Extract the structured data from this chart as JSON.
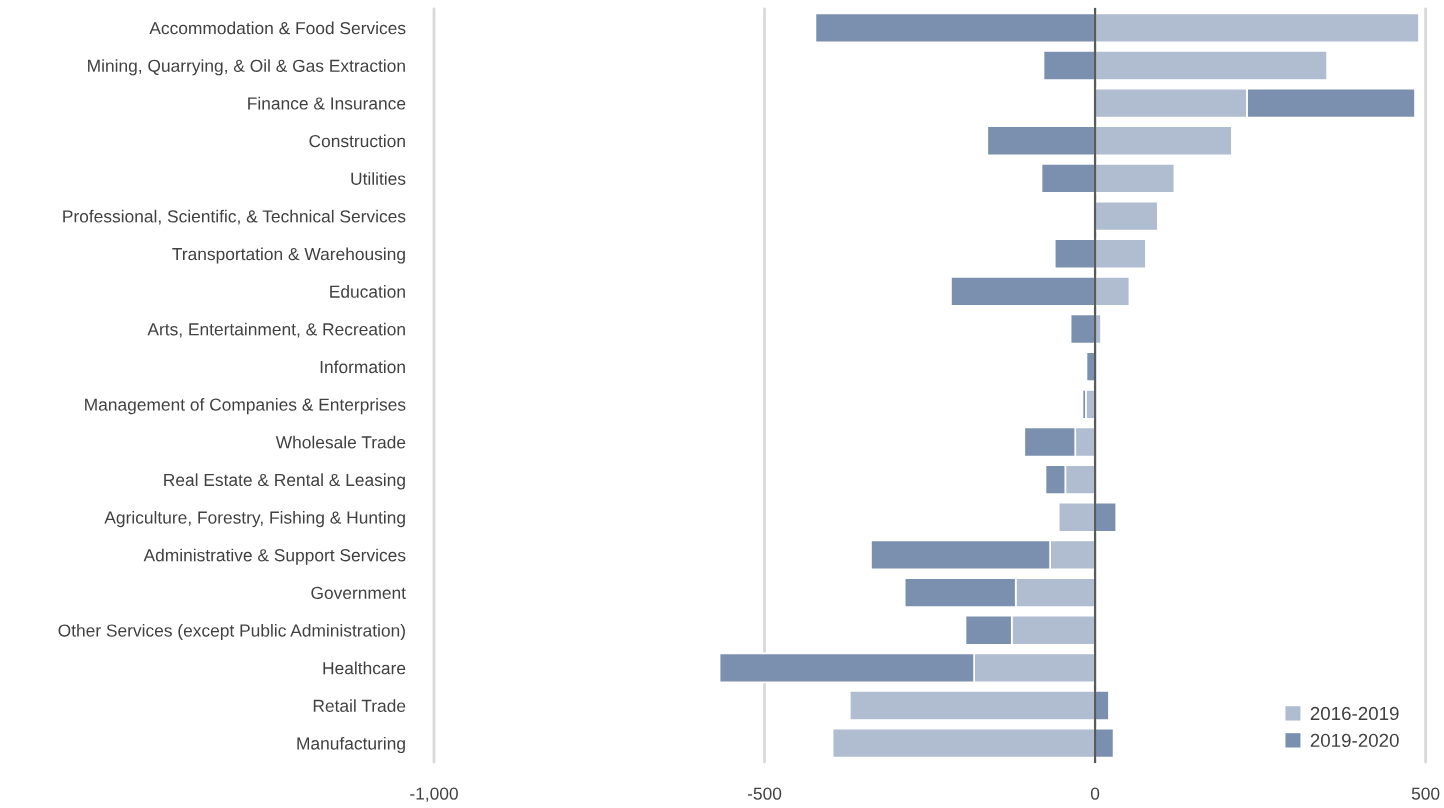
{
  "chart_data": {
    "type": "bar",
    "orientation": "horizontal",
    "stacked": true,
    "categories": [
      "Accommodation & Food Services",
      "Mining, Quarrying, & Oil & Gas Extraction",
      "Finance & Insurance",
      "Construction",
      "Utilities",
      "Professional, Scientific, & Technical Services",
      "Transportation & Warehousing",
      "Education",
      "Arts, Entertainment, & Recreation",
      "Information",
      "Management of Companies & Enterprises",
      "Wholesale Trade",
      "Real Estate & Rental & Leasing",
      "Agriculture, Forestry, Fishing & Hunting",
      "Administrative & Support Services",
      "Government",
      "Other Services (except Public Administration)",
      "Healthcare",
      "Retail Trade",
      "Manufacturing"
    ],
    "series": [
      {
        "name": "2016-2019",
        "color": "#b0bdd0",
        "values": [
          490,
          351,
          230,
          207,
          120,
          95,
          77,
          52,
          9,
          null,
          -14,
          -30,
          -45,
          -55,
          -68,
          -120,
          -126,
          -183,
          -371,
          -397
        ]
      },
      {
        "name": "2019-2020",
        "color": "#7b90ae",
        "values": [
          -423,
          -78,
          254,
          -163,
          -81,
          null,
          -61,
          -218,
          -37,
          -13,
          -5,
          -77,
          -30,
          32,
          -271,
          -168,
          -70,
          -385,
          21,
          28
        ]
      }
    ],
    "xlim": [
      -1000,
      500
    ],
    "xticks": [
      {
        "value": -1000,
        "label": "-1,000"
      },
      -500,
      0,
      500
    ],
    "grid": "x",
    "legend": "bottom right"
  }
}
